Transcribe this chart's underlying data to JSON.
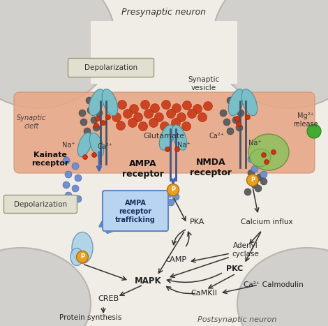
{
  "bg_color": "#f0ece6",
  "neuron_color": "#d2d0cc",
  "neuron_edge": "#b8b6b2",
  "cleft_color": "#e8a888",
  "cleft_edge": "#d09070",
  "receptor_teal": "#7abfc8",
  "receptor_teal_edge": "#4a8fa0",
  "receptor_green": "#90c060",
  "receptor_green_edge": "#609030",
  "vesicle_red": "#cc4422",
  "ion_gray": "#606060",
  "ion_gray_edge": "#404040",
  "ion_blue": "#7090d0",
  "ion_blue_edge": "#4060b0",
  "phospho_fill": "#e8a020",
  "phospho_edge": "#b07010",
  "red_dot": "#cc3311",
  "green_dot": "#44aa33",
  "arrow_dark": "#333333",
  "arrow_blue": "#4466bb",
  "box_dep_fill": "#e0dfd0",
  "box_dep_edge": "#999977",
  "box_traf_fill": "#b8d4f0",
  "box_traf_edge": "#6088c0",
  "labels": {
    "presynaptic": "Presynaptic neuron",
    "postsynaptic": "Postsynaptic neuron",
    "depolarization1": "Depolarization",
    "depolarization2": "Depolarization",
    "synaptic_cleft": "Synaptic\ncleft",
    "synaptic_vesicle": "Synaptic\nvesicle",
    "glutamate": "Glutamate",
    "na_left": "Na⁺",
    "ca_left": "Ca²⁺",
    "kainate": "Kainate\nreceptor",
    "ampa": "AMPA\nreceptor",
    "nmda": "NMDA\nreceptor",
    "na_ampa": "Na⁺",
    "ca_nmda": "Ca²⁺",
    "na_nmda": "Na⁺",
    "mg2": "Mg²⁺\nrelease",
    "ampa_trafficking": "AMPA\nreceptor\ntrafficking",
    "pka": "PKA",
    "camp": "cAMP",
    "calcium_influx": "Calcium influx",
    "adenyl_cyclase": "Adenyl\ncyclase",
    "pkc": "PKC",
    "ca_calmodulin": "Ca²⁺ Calmodulin",
    "mapk": "MAPK",
    "creb": "CREB",
    "camkii": "CaMKII",
    "protein_synthesis": "Protein synthesis"
  }
}
